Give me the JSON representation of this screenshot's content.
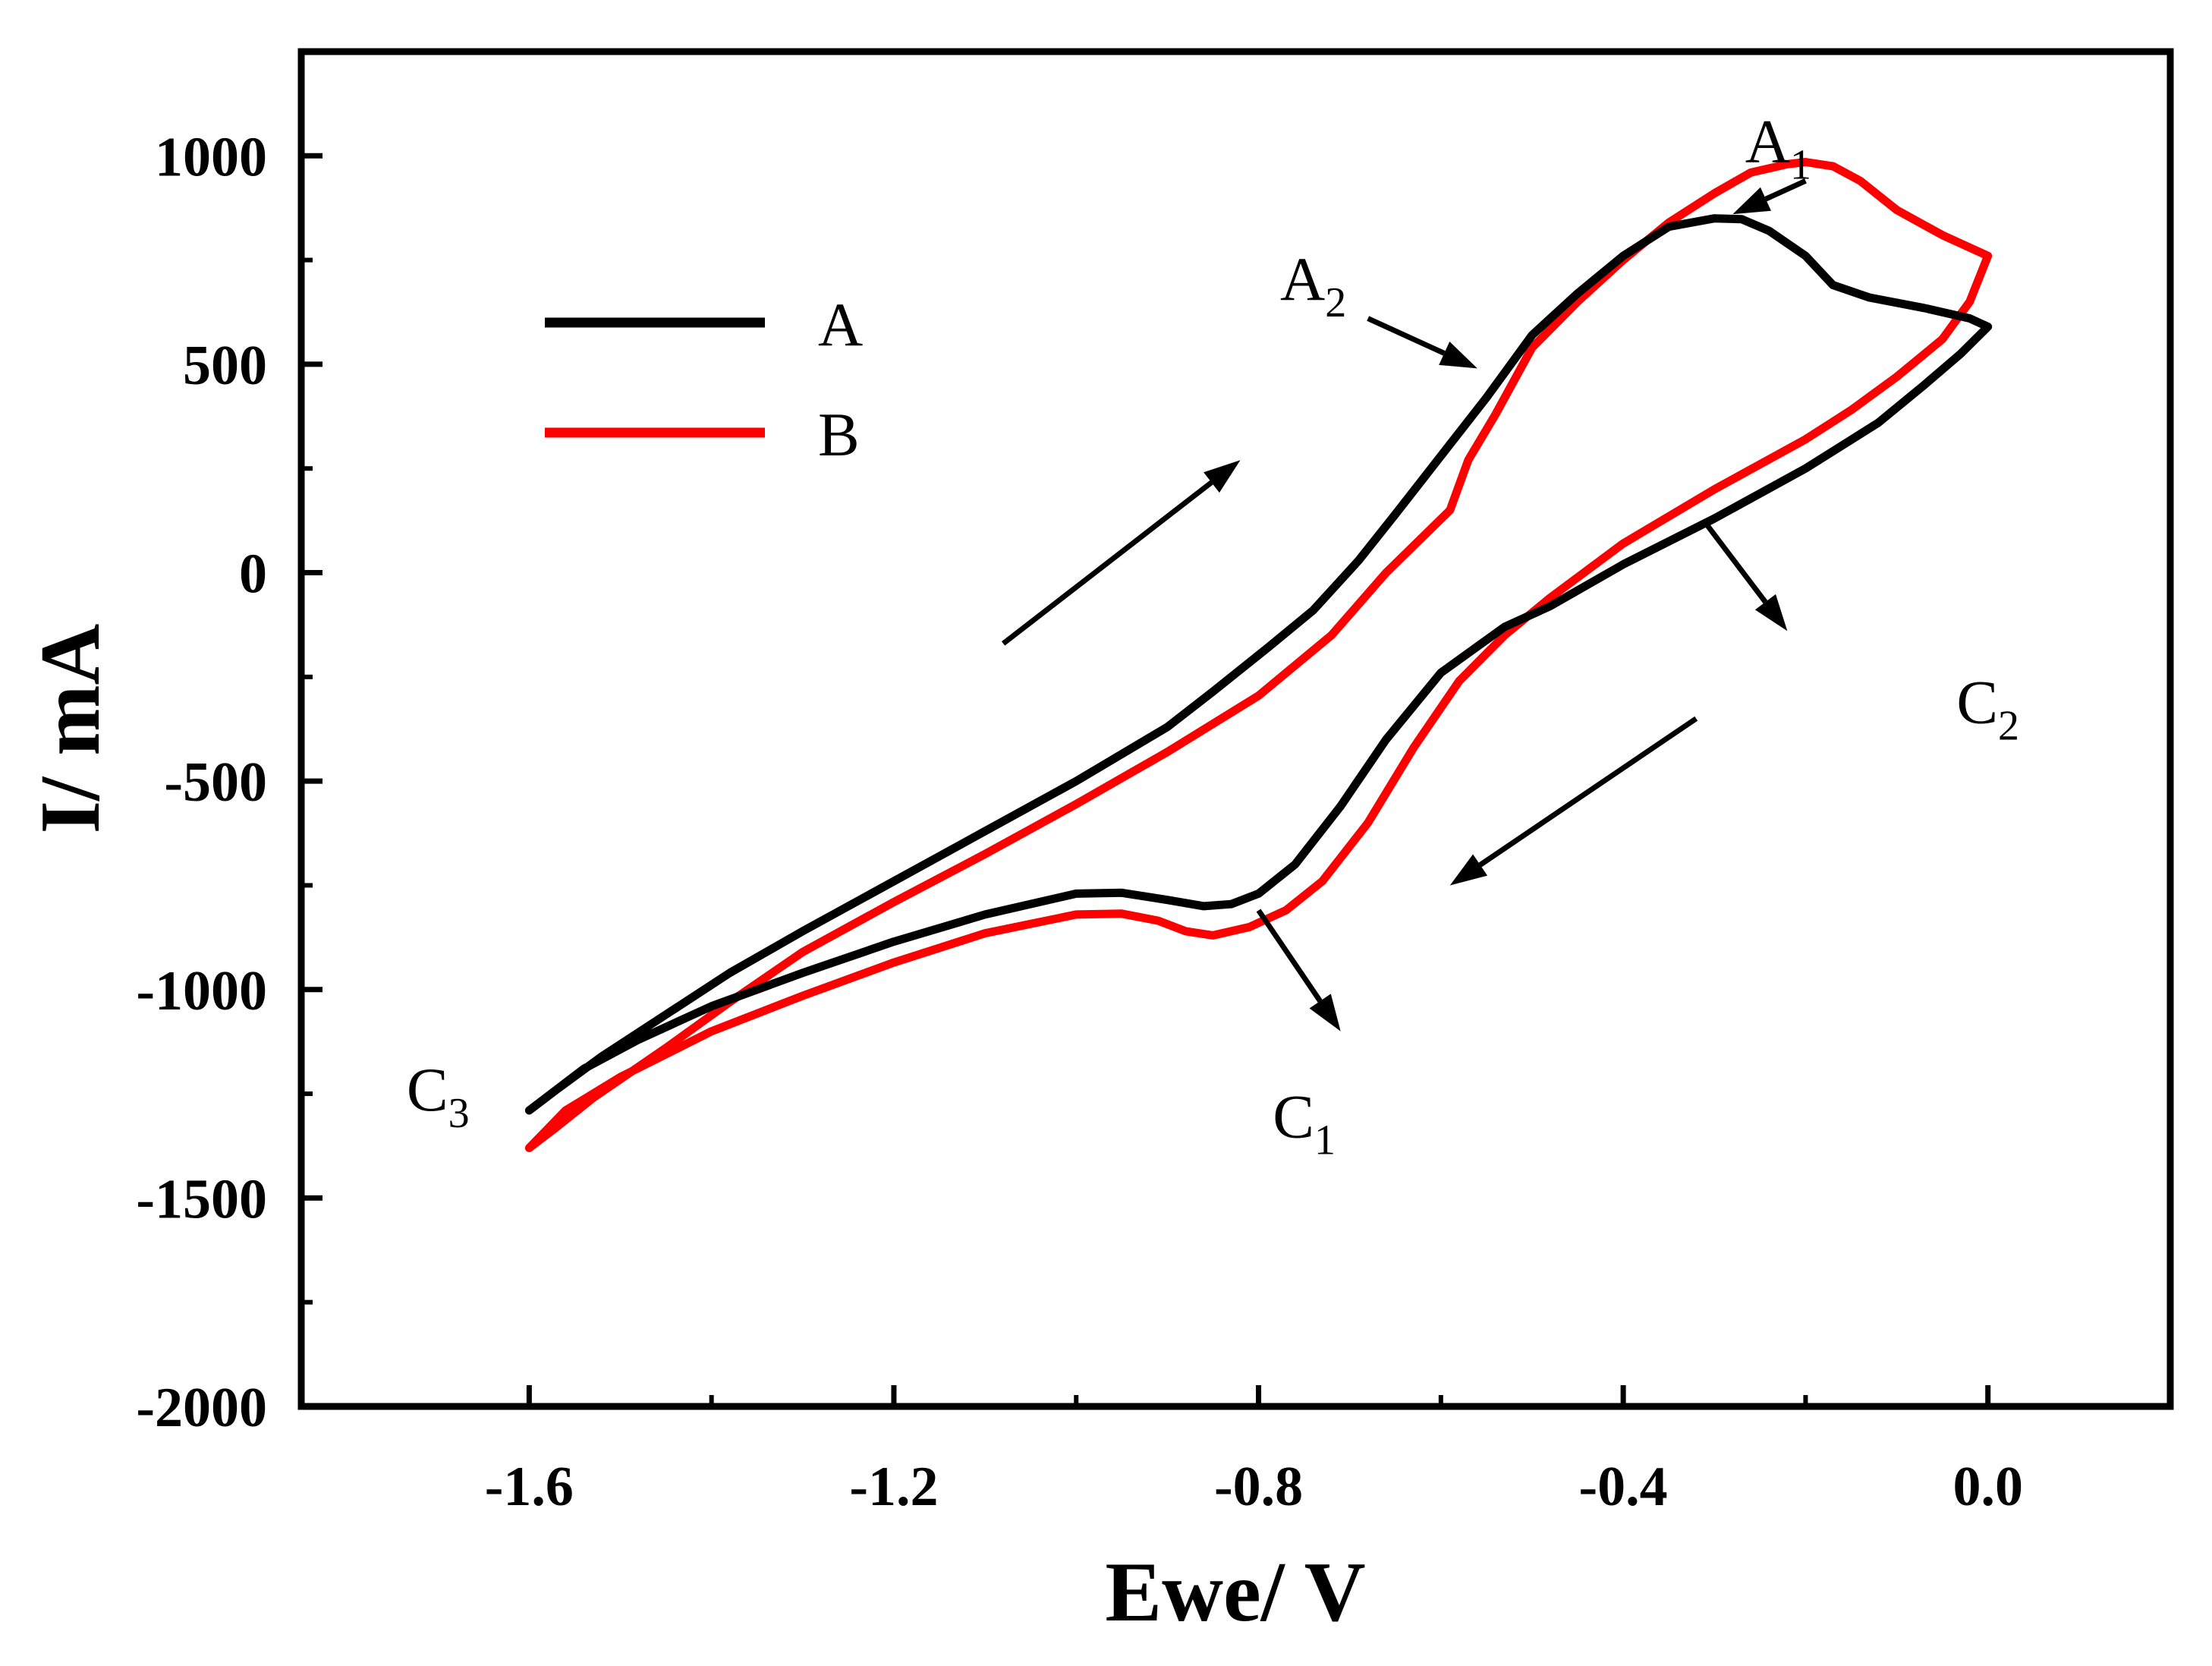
{
  "chart_data": {
    "type": "line",
    "title": "",
    "xlabel": "Ewe/ V",
    "ylabel": "I/ mA",
    "xlim": [
      -1.85,
      0.2
    ],
    "ylim": [
      -2000,
      1250
    ],
    "xticks": [
      -1.6,
      -1.2,
      -0.8,
      -0.4,
      0.0
    ],
    "xtick_labels": [
      "-1.6",
      "-1.2",
      "-0.8",
      "-0.4",
      "0.0"
    ],
    "yticks": [
      -2000,
      -1500,
      -1000,
      -500,
      0,
      500,
      1000
    ],
    "ytick_labels": [
      "-2000",
      "-1500",
      "-1000",
      "-500",
      "0",
      "500",
      "1000"
    ],
    "grid": false,
    "legend_position": "top-left",
    "series": [
      {
        "name": "A",
        "color": "#000000",
        "points": [
          [
            0.0,
            590
          ],
          [
            -0.03,
            525
          ],
          [
            -0.07,
            450
          ],
          [
            -0.12,
            360
          ],
          [
            -0.2,
            250
          ],
          [
            -0.3,
            130
          ],
          [
            -0.4,
            20
          ],
          [
            -0.48,
            -80
          ],
          [
            -0.53,
            -130
          ],
          [
            -0.6,
            -240
          ],
          [
            -0.66,
            -400
          ],
          [
            -0.71,
            -560
          ],
          [
            -0.76,
            -700
          ],
          [
            -0.8,
            -770
          ],
          [
            -0.83,
            -795
          ],
          [
            -0.86,
            -800
          ],
          [
            -0.9,
            -785
          ],
          [
            -0.95,
            -768
          ],
          [
            -1.0,
            -770
          ],
          [
            -1.1,
            -820
          ],
          [
            -1.2,
            -885
          ],
          [
            -1.3,
            -960
          ],
          [
            -1.4,
            -1040
          ],
          [
            -1.48,
            -1120
          ],
          [
            -1.54,
            -1190
          ],
          [
            -1.6,
            -1290
          ],
          [
            -1.57,
            -1240
          ],
          [
            -1.52,
            -1160
          ],
          [
            -1.45,
            -1060
          ],
          [
            -1.38,
            -960
          ],
          [
            -1.3,
            -860
          ],
          [
            -1.2,
            -740
          ],
          [
            -1.1,
            -620
          ],
          [
            -1.0,
            -500
          ],
          [
            -0.9,
            -370
          ],
          [
            -0.85,
            -285
          ],
          [
            -0.79,
            -180
          ],
          [
            -0.74,
            -90
          ],
          [
            -0.69,
            30
          ],
          [
            -0.65,
            140
          ],
          [
            -0.6,
            280
          ],
          [
            -0.55,
            420
          ],
          [
            -0.5,
            570
          ],
          [
            -0.45,
            670
          ],
          [
            -0.4,
            760
          ],
          [
            -0.35,
            830
          ],
          [
            -0.3,
            850
          ],
          [
            -0.27,
            848
          ],
          [
            -0.24,
            820
          ],
          [
            -0.2,
            760
          ],
          [
            -0.17,
            690
          ],
          [
            -0.13,
            660
          ],
          [
            -0.07,
            635
          ],
          [
            -0.02,
            610
          ],
          [
            0.0,
            590
          ]
        ]
      },
      {
        "name": "B",
        "color": "#ff0000",
        "points": [
          [
            0.0,
            760
          ],
          [
            -0.02,
            650
          ],
          [
            -0.05,
            560
          ],
          [
            -0.1,
            470
          ],
          [
            -0.15,
            390
          ],
          [
            -0.2,
            320
          ],
          [
            -0.3,
            200
          ],
          [
            -0.4,
            70
          ],
          [
            -0.48,
            -60
          ],
          [
            -0.53,
            -150
          ],
          [
            -0.58,
            -260
          ],
          [
            -0.63,
            -420
          ],
          [
            -0.68,
            -600
          ],
          [
            -0.73,
            -740
          ],
          [
            -0.77,
            -810
          ],
          [
            -0.81,
            -850
          ],
          [
            -0.85,
            -870
          ],
          [
            -0.88,
            -860
          ],
          [
            -0.91,
            -835
          ],
          [
            -0.95,
            -818
          ],
          [
            -1.0,
            -820
          ],
          [
            -1.1,
            -865
          ],
          [
            -1.2,
            -935
          ],
          [
            -1.3,
            -1015
          ],
          [
            -1.4,
            -1100
          ],
          [
            -1.5,
            -1210
          ],
          [
            -1.56,
            -1290
          ],
          [
            -1.6,
            -1380
          ],
          [
            -1.57,
            -1330
          ],
          [
            -1.53,
            -1260
          ],
          [
            -1.45,
            -1140
          ],
          [
            -1.38,
            -1030
          ],
          [
            -1.3,
            -910
          ],
          [
            -1.2,
            -790
          ],
          [
            -1.1,
            -675
          ],
          [
            -1.0,
            -555
          ],
          [
            -0.9,
            -430
          ],
          [
            -0.8,
            -295
          ],
          [
            -0.72,
            -150
          ],
          [
            -0.66,
            0
          ],
          [
            -0.59,
            150
          ],
          [
            -0.57,
            270
          ],
          [
            -0.54,
            380
          ],
          [
            -0.5,
            540
          ],
          [
            -0.45,
            650
          ],
          [
            -0.4,
            750
          ],
          [
            -0.35,
            840
          ],
          [
            -0.3,
            910
          ],
          [
            -0.26,
            960
          ],
          [
            -0.22,
            980
          ],
          [
            -0.2,
            985
          ],
          [
            -0.17,
            975
          ],
          [
            -0.14,
            940
          ],
          [
            -0.1,
            870
          ],
          [
            -0.05,
            810
          ],
          [
            0.0,
            760
          ]
        ]
      }
    ],
    "annotations": [
      {
        "main": "A",
        "sub": "1",
        "x": -0.23,
        "y": 985
      },
      {
        "main": "A",
        "sub": "2",
        "x": -0.74,
        "y": 655
      },
      {
        "main": "C",
        "sub": "1",
        "x": -0.75,
        "y": -1355
      },
      {
        "main": "C",
        "sub": "2",
        "x": 0.0,
        "y": -360
      },
      {
        "main": "C",
        "sub": "3",
        "x": -1.7,
        "y": -1290
      }
    ],
    "arrows": [
      {
        "from": [
          -0.2,
          940
        ],
        "to": [
          -0.28,
          860
        ]
      },
      {
        "from": [
          -0.68,
          610
        ],
        "to": [
          -0.56,
          490
        ]
      },
      {
        "from": [
          -0.8,
          -810
        ],
        "to": [
          -0.71,
          -1100
        ]
      },
      {
        "from": [
          -0.31,
          120
        ],
        "to": [
          -0.22,
          -140
        ]
      },
      {
        "from": [
          -1.08,
          -170
        ],
        "to": [
          -0.82,
          270
        ]
      },
      {
        "from": [
          -0.32,
          -350
        ],
        "to": [
          -0.59,
          -750
        ]
      }
    ]
  }
}
